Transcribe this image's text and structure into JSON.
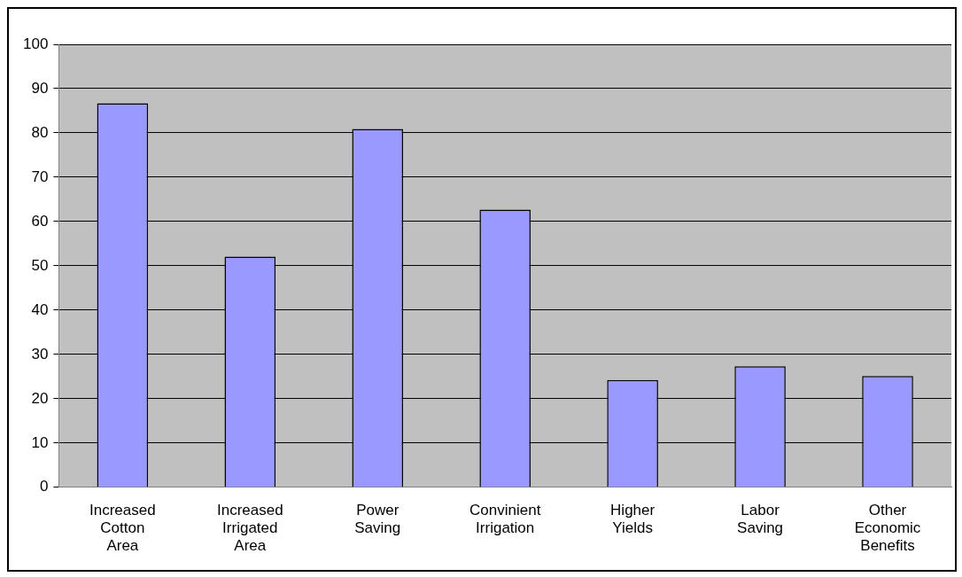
{
  "chart_data": {
    "type": "bar",
    "categories": [
      "Increased Cotton Area",
      "Increased Irrigated Area",
      "Power Saving",
      "Convinient Irrigation",
      "Higher Yields",
      "Labor Saving",
      "Other Economic Benefits"
    ],
    "values": [
      86.7,
      52.1,
      80.9,
      62.7,
      24.2,
      27.3,
      25.1
    ],
    "color": "#9999ff",
    "ylim": [
      0,
      100
    ],
    "yticks": [
      0,
      10,
      20,
      30,
      40,
      50,
      60,
      70,
      80,
      90,
      100
    ],
    "grid": "y",
    "legend": false
  }
}
